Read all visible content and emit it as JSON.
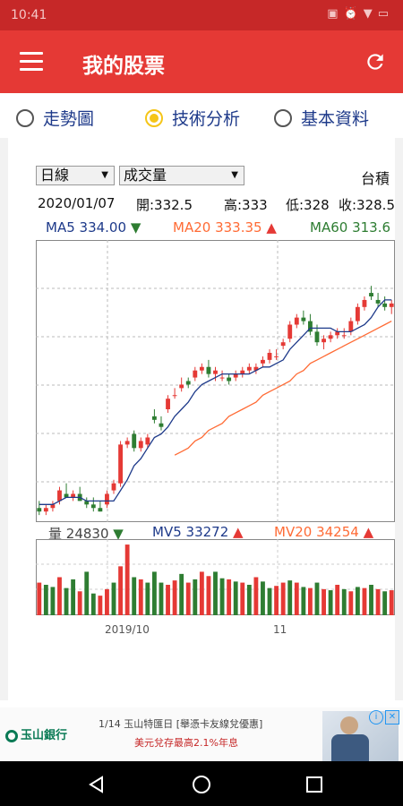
{
  "status": {
    "time": "10:41"
  },
  "app": {
    "title": "我的股票"
  },
  "tabs": [
    {
      "label": "走勢圖",
      "selected": false
    },
    {
      "label": "技術分析",
      "selected": true
    },
    {
      "label": "基本資料",
      "selected": false
    }
  ],
  "controls": {
    "period": "日線",
    "indicator": "成交量",
    "market": "台積"
  },
  "ohlc": {
    "date": "2020/01/07",
    "open": "開:332.5",
    "high": "高:333",
    "low": "低:328",
    "close": "收:328.5"
  },
  "ma": {
    "ma5_label": "MA5",
    "ma5": "334.00",
    "ma20_label": "MA20",
    "ma20": "333.35",
    "ma60_label": "MA60",
    "ma60": "313.6"
  },
  "volume": {
    "label": "量",
    "value": "24830",
    "mv5_label": "MV5",
    "mv5": "33272",
    "mv20_label": "MV20",
    "mv20": "34254"
  },
  "x_labels": [
    "2019/10",
    "11"
  ],
  "ad": {
    "bank": "玉山銀行",
    "line1": "1/14 玉山特匯日 [舉憑卡友線兌優惠]",
    "line2": "美元兌存最高2.1%年息"
  },
  "colors": {
    "up": "#e53935",
    "down": "#2e7d32",
    "ma5": "#1e3a8a",
    "ma20": "#ff6b35"
  },
  "chart_data": {
    "type": "candlestick",
    "candles": [
      [
        264,
        266,
        262,
        263
      ],
      [
        263,
        265,
        262,
        264
      ],
      [
        264,
        266,
        263,
        265
      ],
      [
        266,
        270,
        265,
        269
      ],
      [
        268,
        271,
        267,
        267
      ],
      [
        267,
        269,
        266,
        268
      ],
      [
        268,
        270,
        266,
        266
      ],
      [
        266,
        267,
        264,
        265
      ],
      [
        265,
        267,
        263,
        264
      ],
      [
        264,
        266,
        263,
        263
      ],
      [
        265,
        269,
        264,
        268
      ],
      [
        269,
        272,
        268,
        271
      ],
      [
        271,
        283,
        270,
        282
      ],
      [
        282,
        284,
        281,
        283
      ],
      [
        285,
        286,
        280,
        281
      ],
      [
        281,
        284,
        280,
        283
      ],
      [
        282,
        285,
        281,
        284
      ],
      [
        290,
        292,
        288,
        289
      ],
      [
        288,
        290,
        286,
        287
      ],
      [
        292,
        296,
        291,
        295
      ],
      [
        296,
        298,
        295,
        296
      ],
      [
        298,
        301,
        297,
        299
      ],
      [
        300,
        301,
        298,
        299
      ],
      [
        301,
        304,
        300,
        303
      ],
      [
        303,
        305,
        302,
        304
      ],
      [
        304,
        306,
        301,
        302
      ],
      [
        302,
        304,
        300,
        303
      ],
      [
        301,
        303,
        300,
        301
      ],
      [
        301,
        302,
        299,
        300
      ],
      [
        301,
        303,
        300,
        302
      ],
      [
        302,
        304,
        301,
        303
      ],
      [
        303,
        305,
        302,
        304
      ],
      [
        303,
        305,
        302,
        304
      ],
      [
        305,
        307,
        304,
        306
      ],
      [
        306,
        309,
        305,
        308
      ],
      [
        307,
        309,
        306,
        307
      ],
      [
        310,
        312,
        309,
        311
      ],
      [
        312,
        317,
        311,
        316
      ],
      [
        316,
        319,
        315,
        318
      ],
      [
        318,
        320,
        316,
        317
      ],
      [
        317,
        319,
        313,
        314
      ],
      [
        314,
        316,
        310,
        311
      ],
      [
        311,
        313,
        309,
        312
      ],
      [
        312,
        314,
        311,
        313
      ],
      [
        313,
        315,
        312,
        314
      ],
      [
        313,
        315,
        312,
        313
      ],
      [
        314,
        318,
        313,
        317
      ],
      [
        317,
        322,
        316,
        321
      ],
      [
        321,
        324,
        320,
        323
      ],
      [
        325,
        327,
        323,
        324
      ],
      [
        323,
        325,
        321,
        322
      ],
      [
        322,
        324,
        320,
        321
      ],
      [
        321,
        323,
        319,
        322
      ]
    ],
    "ma5": [
      265,
      265,
      265,
      266,
      267,
      267,
      267,
      266,
      266,
      266,
      266,
      266,
      269,
      272,
      276,
      278,
      281,
      284,
      285,
      287,
      290,
      292,
      294,
      297,
      299,
      300,
      301,
      302,
      302,
      302,
      302,
      302,
      303,
      304,
      304,
      305,
      306,
      309,
      311,
      313,
      315,
      315,
      315,
      315,
      314,
      314,
      314,
      315,
      316,
      318,
      321,
      323,
      323
    ],
    "ma20": [
      null,
      null,
      null,
      null,
      null,
      null,
      null,
      null,
      null,
      null,
      null,
      null,
      null,
      null,
      null,
      null,
      null,
      null,
      null,
      null,
      279,
      280,
      281,
      283,
      284,
      286,
      287,
      288,
      290,
      291,
      292,
      293,
      294,
      296,
      297,
      298,
      299,
      300,
      302,
      303,
      305,
      306,
      307,
      308,
      309,
      310,
      311,
      312,
      313,
      314,
      315,
      316,
      317
    ],
    "volumes": [
      [
        30,
        1
      ],
      [
        28,
        0
      ],
      [
        26,
        0
      ],
      [
        35,
        1
      ],
      [
        25,
        0
      ],
      [
        33,
        0
      ],
      [
        22,
        1
      ],
      [
        40,
        0
      ],
      [
        20,
        0
      ],
      [
        18,
        1
      ],
      [
        24,
        1
      ],
      [
        30,
        0
      ],
      [
        45,
        1
      ],
      [
        65,
        1
      ],
      [
        35,
        0
      ],
      [
        33,
        1
      ],
      [
        30,
        0
      ],
      [
        40,
        0
      ],
      [
        30,
        0
      ],
      [
        28,
        1
      ],
      [
        32,
        1
      ],
      [
        38,
        0
      ],
      [
        30,
        1
      ],
      [
        33,
        0
      ],
      [
        40,
        1
      ],
      [
        36,
        1
      ],
      [
        40,
        0
      ],
      [
        34,
        0
      ],
      [
        33,
        1
      ],
      [
        31,
        0
      ],
      [
        30,
        1
      ],
      [
        28,
        0
      ],
      [
        35,
        1
      ],
      [
        31,
        0
      ],
      [
        25,
        0
      ],
      [
        27,
        1
      ],
      [
        30,
        1
      ],
      [
        32,
        0
      ],
      [
        30,
        1
      ],
      [
        26,
        0
      ],
      [
        25,
        1
      ],
      [
        30,
        0
      ],
      [
        24,
        1
      ],
      [
        23,
        0
      ],
      [
        28,
        1
      ],
      [
        24,
        0
      ],
      [
        22,
        1
      ],
      [
        26,
        0
      ],
      [
        25,
        1
      ],
      [
        28,
        0
      ],
      [
        24,
        1
      ],
      [
        22,
        0
      ],
      [
        23,
        1
      ]
    ],
    "price_range": [
      260,
      340
    ],
    "volume_max": 70
  }
}
